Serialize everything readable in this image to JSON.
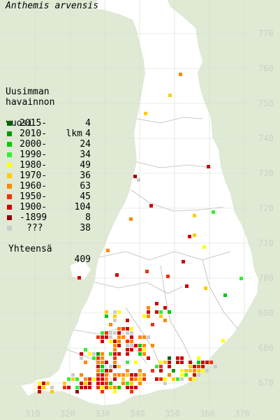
{
  "title": "Anthemis arvensis",
  "legend": {
    "heading_line1": "Uusimman",
    "heading_line2": "havainnon",
    "heading_col1": "vuosi",
    "heading_col2": "lkm",
    "items": [
      {
        "label": "2015-",
        "count": "4",
        "color": "#006600"
      },
      {
        "label": "2010-",
        "count": "4",
        "color": "#009900"
      },
      {
        "label": "2000-",
        "count": "24",
        "color": "#00cc00"
      },
      {
        "label": "1990-",
        "count": "34",
        "color": "#33ee33"
      },
      {
        "label": "1980-",
        "count": "49",
        "color": "#ffff00"
      },
      {
        "label": "1970-",
        "count": "36",
        "color": "#ffcc00"
      },
      {
        "label": "1960-",
        "count": "63",
        "color": "#ff8800"
      },
      {
        "label": "1950-",
        "count": "45",
        "color": "#ee3300"
      },
      {
        "label": "1900-",
        "count": "104",
        "color": "#cc0000"
      },
      {
        "label": "-1899",
        "count": "8",
        "color": "#990000"
      },
      {
        "label": "???",
        "count": "38",
        "color": "#cccccc"
      }
    ],
    "total_label": "Yhteensä",
    "total_count": "409"
  },
  "axes": {
    "x_ticks": [
      "310",
      "320",
      "330",
      "340",
      "350",
      "360",
      "370"
    ],
    "y_ticks": [
      "770",
      "760",
      "750",
      "740",
      "730",
      "720",
      "710",
      "700",
      "690",
      "680",
      "670"
    ]
  },
  "colors": {
    "background": "#dfe9d4",
    "land": "#ffffff",
    "grid": "#c8d2bc",
    "border_lines": "#b8b8b8"
  }
}
